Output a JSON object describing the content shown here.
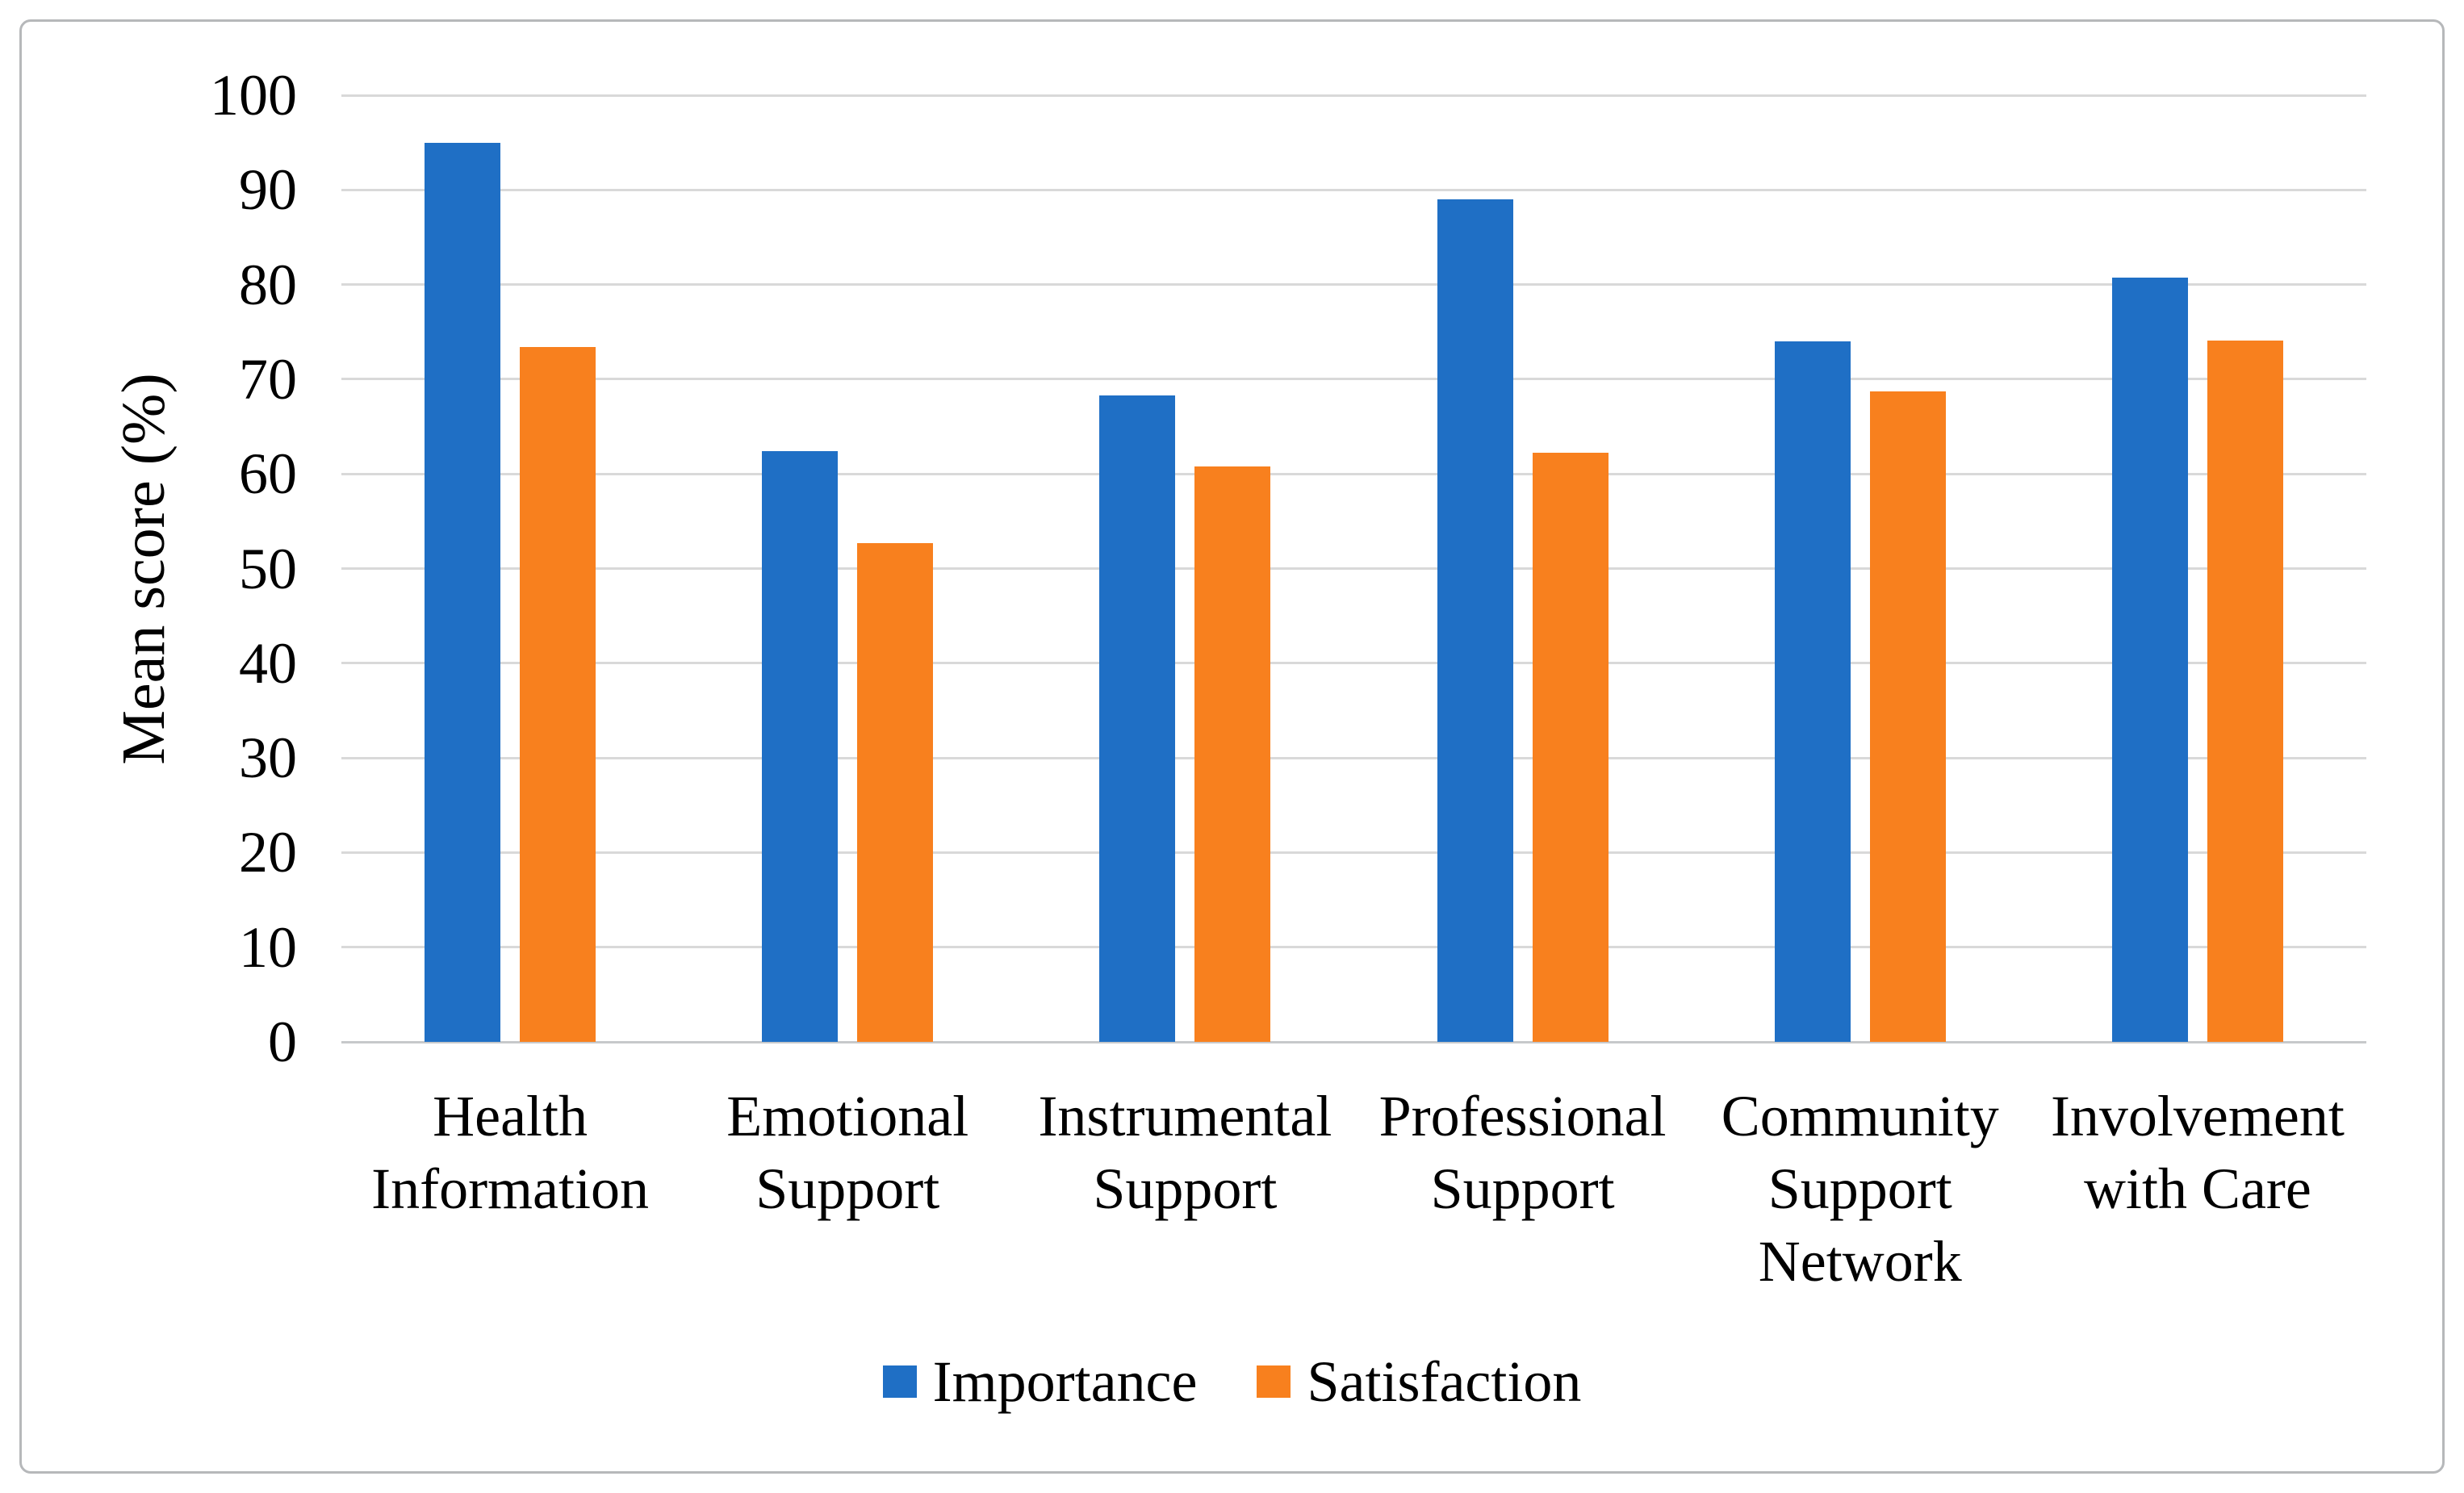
{
  "figure": {
    "background_color": "#ffffff",
    "border_color": "#b6b8ba"
  },
  "chart_data": {
    "type": "bar",
    "title": "",
    "categories": [
      "Health Information",
      "Emotional Support",
      "Instrumental Support",
      "Professional Support",
      "Community Support Network",
      "Involvement with Care"
    ],
    "series": [
      {
        "name": "Importance",
        "color": "#1f6fc5",
        "values": [
          95.0,
          62.4,
          68.3,
          89.0,
          74.0,
          80.7
        ]
      },
      {
        "name": "Satisfaction",
        "color": "#f8801e",
        "values": [
          73.4,
          52.7,
          60.8,
          62.2,
          68.7,
          74.1
        ]
      }
    ],
    "xlabel": "",
    "ylabel": "Mean score (%)",
    "ylim": [
      0,
      100
    ],
    "ytick_step": 10,
    "yticks": [
      "0",
      "10",
      "20",
      "30",
      "40",
      "50",
      "60",
      "70",
      "80",
      "90",
      "100"
    ],
    "grid": true,
    "gridline_color": "#d9d9d9",
    "axis_line_color": "#c7c9cb",
    "legend_position": "bottom"
  }
}
